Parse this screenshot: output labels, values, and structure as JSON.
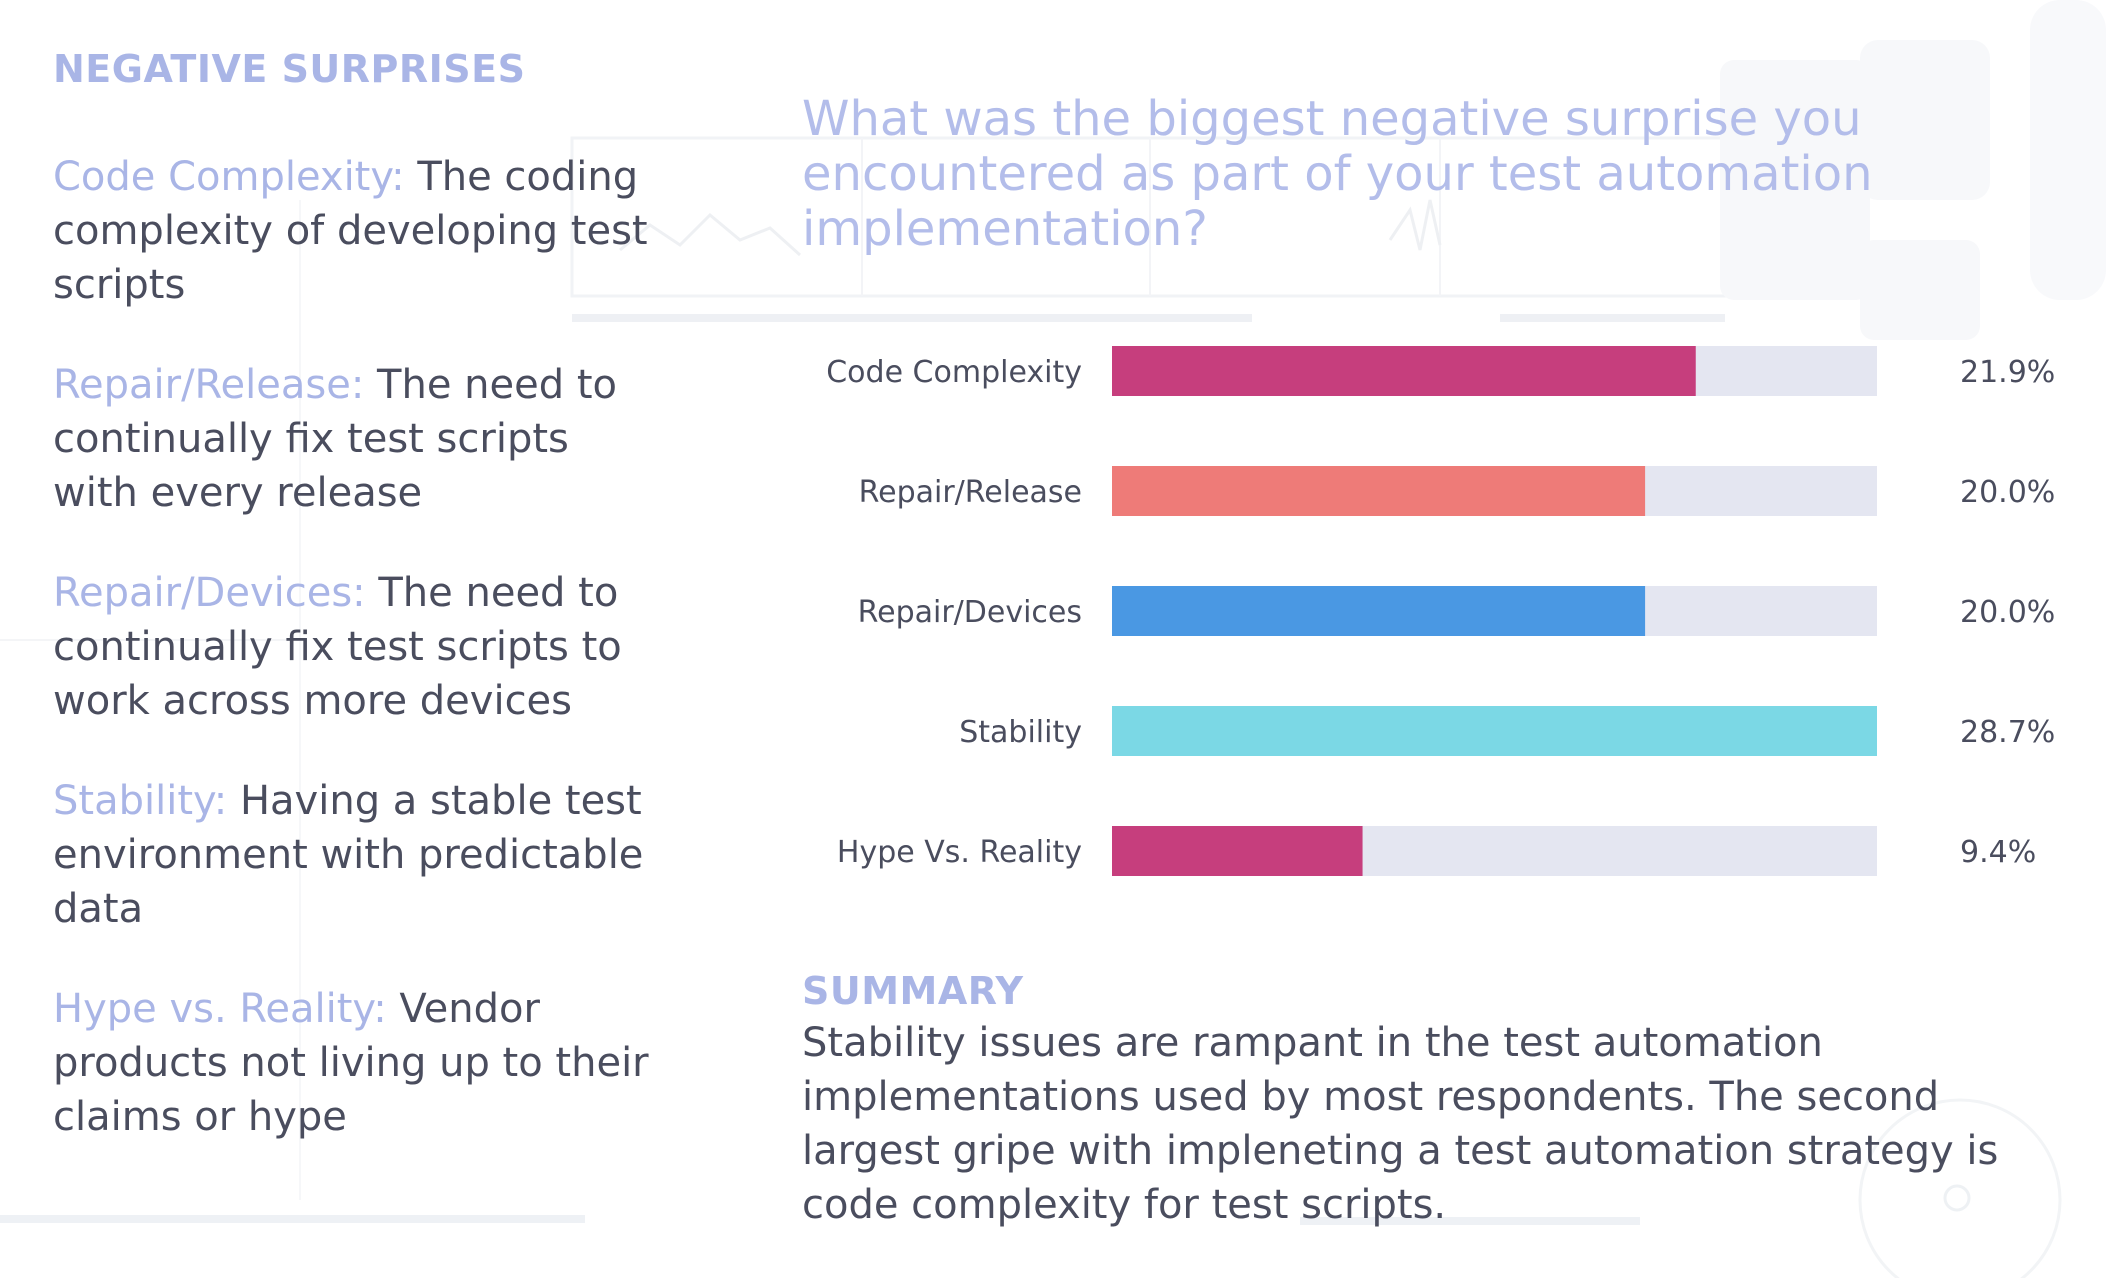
{
  "left": {
    "heading": "NEGATIVE SURPRISES",
    "definitions": [
      {
        "term": "Code Complexity:",
        "text": " The coding complexity of developing test scripts"
      },
      {
        "term": "Repair/Release:",
        "text": " The need to continually fix test scripts with every release"
      },
      {
        "term": "Repair/Devices:",
        "text": " The need to continually fix test scripts to work across more devices"
      },
      {
        "term": "Stability:",
        "text": " Having a stable test environment with predictable data"
      },
      {
        "term": "Hype vs. Reality:",
        "text": " Vendor products not living up to their claims or hype"
      }
    ]
  },
  "question": "What was the biggest negative surprise you encountered as part of your test automation implementation?",
  "summary": {
    "heading": "SUMMARY",
    "text": "Stability issues are rampant in the test automation implementations used by most respondents. The second largest gripe with impleneting a test automation strategy is code complexity for test scripts."
  },
  "colors": {
    "track": "#e4e6f1",
    "accent_heading": "#a9b5e6",
    "text": "#4a4d5e"
  },
  "chart_data": {
    "type": "bar",
    "orientation": "horizontal",
    "categories": [
      "Code Complexity",
      "Repair/Release",
      "Repair/Devices",
      "Stability",
      "Hype Vs. Reality"
    ],
    "values": [
      21.9,
      20.0,
      20.0,
      28.7,
      9.4
    ],
    "value_labels": [
      "21.9%",
      "20.0%",
      "20.0%",
      "28.7%",
      "9.4%"
    ],
    "bar_colors": [
      "#c63e7d",
      "#ee7b78",
      "#4a98e3",
      "#7bd8e5",
      "#c63e7d"
    ],
    "xlim": [
      0,
      28.7
    ],
    "grid": false
  }
}
